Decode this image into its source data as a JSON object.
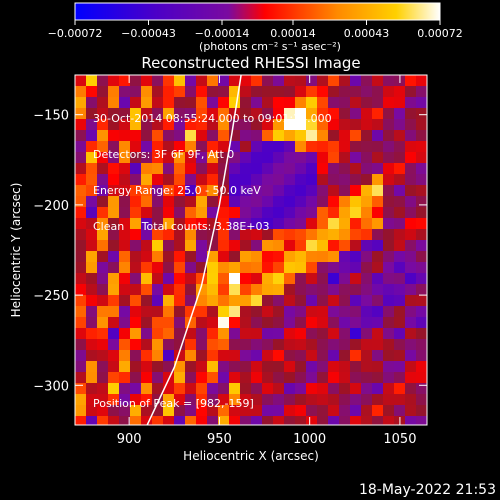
{
  "chart_data": {
    "type": "heatmap",
    "title": "Reconstructed RHESSI Image",
    "xlabel": "Heliocentric X (arcsec)",
    "ylabel": "Heliocentric Y (arcsec)",
    "xlim": [
      870,
      1065
    ],
    "ylim": [
      -322,
      -128
    ],
    "x_ticks": [
      900,
      950,
      1000,
      1050
    ],
    "y_ticks": [
      -300,
      -250,
      -200,
      -150
    ],
    "x_tick_labels": [
      "900",
      "950",
      "1000",
      "1050"
    ],
    "y_tick_labels": [
      "−300",
      "−250",
      "−200",
      "−150"
    ],
    "colorbar": {
      "min": -0.00072,
      "max": 0.00072,
      "ticks": [
        -0.00072,
        -0.00043,
        -0.00014,
        0.00014,
        0.00043,
        0.00072
      ],
      "tick_labels": [
        "−0.00072",
        "−0.00043",
        "−0.00014",
        "0.00014",
        "0.00043",
        "0.00072"
      ],
      "unit_label": "(photons cm⁻² s⁻¹ asec⁻²)",
      "colormap": [
        "#0000ff",
        "#4b00c8",
        "#7a0aa0",
        "#ff0000",
        "#ff8a00",
        "#ffd000",
        "#ffffff"
      ]
    },
    "peak": {
      "x": 982,
      "y": -159
    },
    "annotations": [
      "30-Oct-2014 08:55:24.000 to 09:01:24.000",
      "Detectors: 3F 6F 9F, Att 0",
      "Energy Range: 25.0 - 50.0 keV",
      "Clean     Total counts: 3.38E+03",
      "Position of Peak = [982,-159]"
    ],
    "limb_curve": [
      [
        910,
        -322
      ],
      [
        925,
        -290
      ],
      [
        940,
        -245
      ],
      [
        950,
        -200
      ],
      [
        957,
        -160
      ],
      [
        962,
        -128
      ]
    ]
  },
  "footer": {
    "timestamp": "18-May-2022 21:53"
  }
}
